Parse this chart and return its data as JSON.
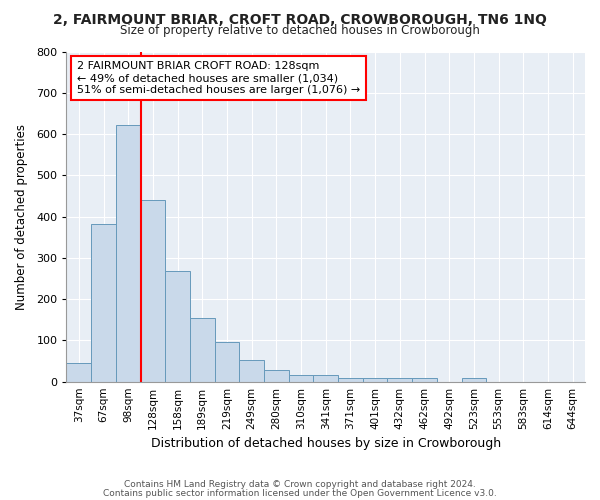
{
  "title1": "2, FAIRMOUNT BRIAR, CROFT ROAD, CROWBOROUGH, TN6 1NQ",
  "title2": "Size of property relative to detached houses in Crowborough",
  "xlabel": "Distribution of detached houses by size in Crowborough",
  "ylabel": "Number of detached properties",
  "categories": [
    "37sqm",
    "67sqm",
    "98sqm",
    "128sqm",
    "158sqm",
    "189sqm",
    "219sqm",
    "249sqm",
    "280sqm",
    "310sqm",
    "341sqm",
    "371sqm",
    "401sqm",
    "432sqm",
    "462sqm",
    "492sqm",
    "523sqm",
    "553sqm",
    "583sqm",
    "614sqm",
    "644sqm"
  ],
  "values": [
    45,
    383,
    623,
    440,
    267,
    155,
    95,
    52,
    28,
    15,
    15,
    10,
    10,
    10,
    10,
    0,
    8,
    0,
    0,
    0,
    0
  ],
  "bar_color": "#c9d9ea",
  "bar_edge_color": "#6699bb",
  "vline_x_index": 3,
  "vline_color": "red",
  "annotation_text": "2 FAIRMOUNT BRIAR CROFT ROAD: 128sqm\n← 49% of detached houses are smaller (1,034)\n51% of semi-detached houses are larger (1,076) →",
  "annotation_box_color": "white",
  "annotation_box_edge_color": "red",
  "ylim": [
    0,
    800
  ],
  "yticks": [
    0,
    100,
    200,
    300,
    400,
    500,
    600,
    700,
    800
  ],
  "footer1": "Contains HM Land Registry data © Crown copyright and database right 2024.",
  "footer2": "Contains public sector information licensed under the Open Government Licence v3.0.",
  "fig_bg_color": "#ffffff",
  "plot_bg_color": "#e8eef5"
}
